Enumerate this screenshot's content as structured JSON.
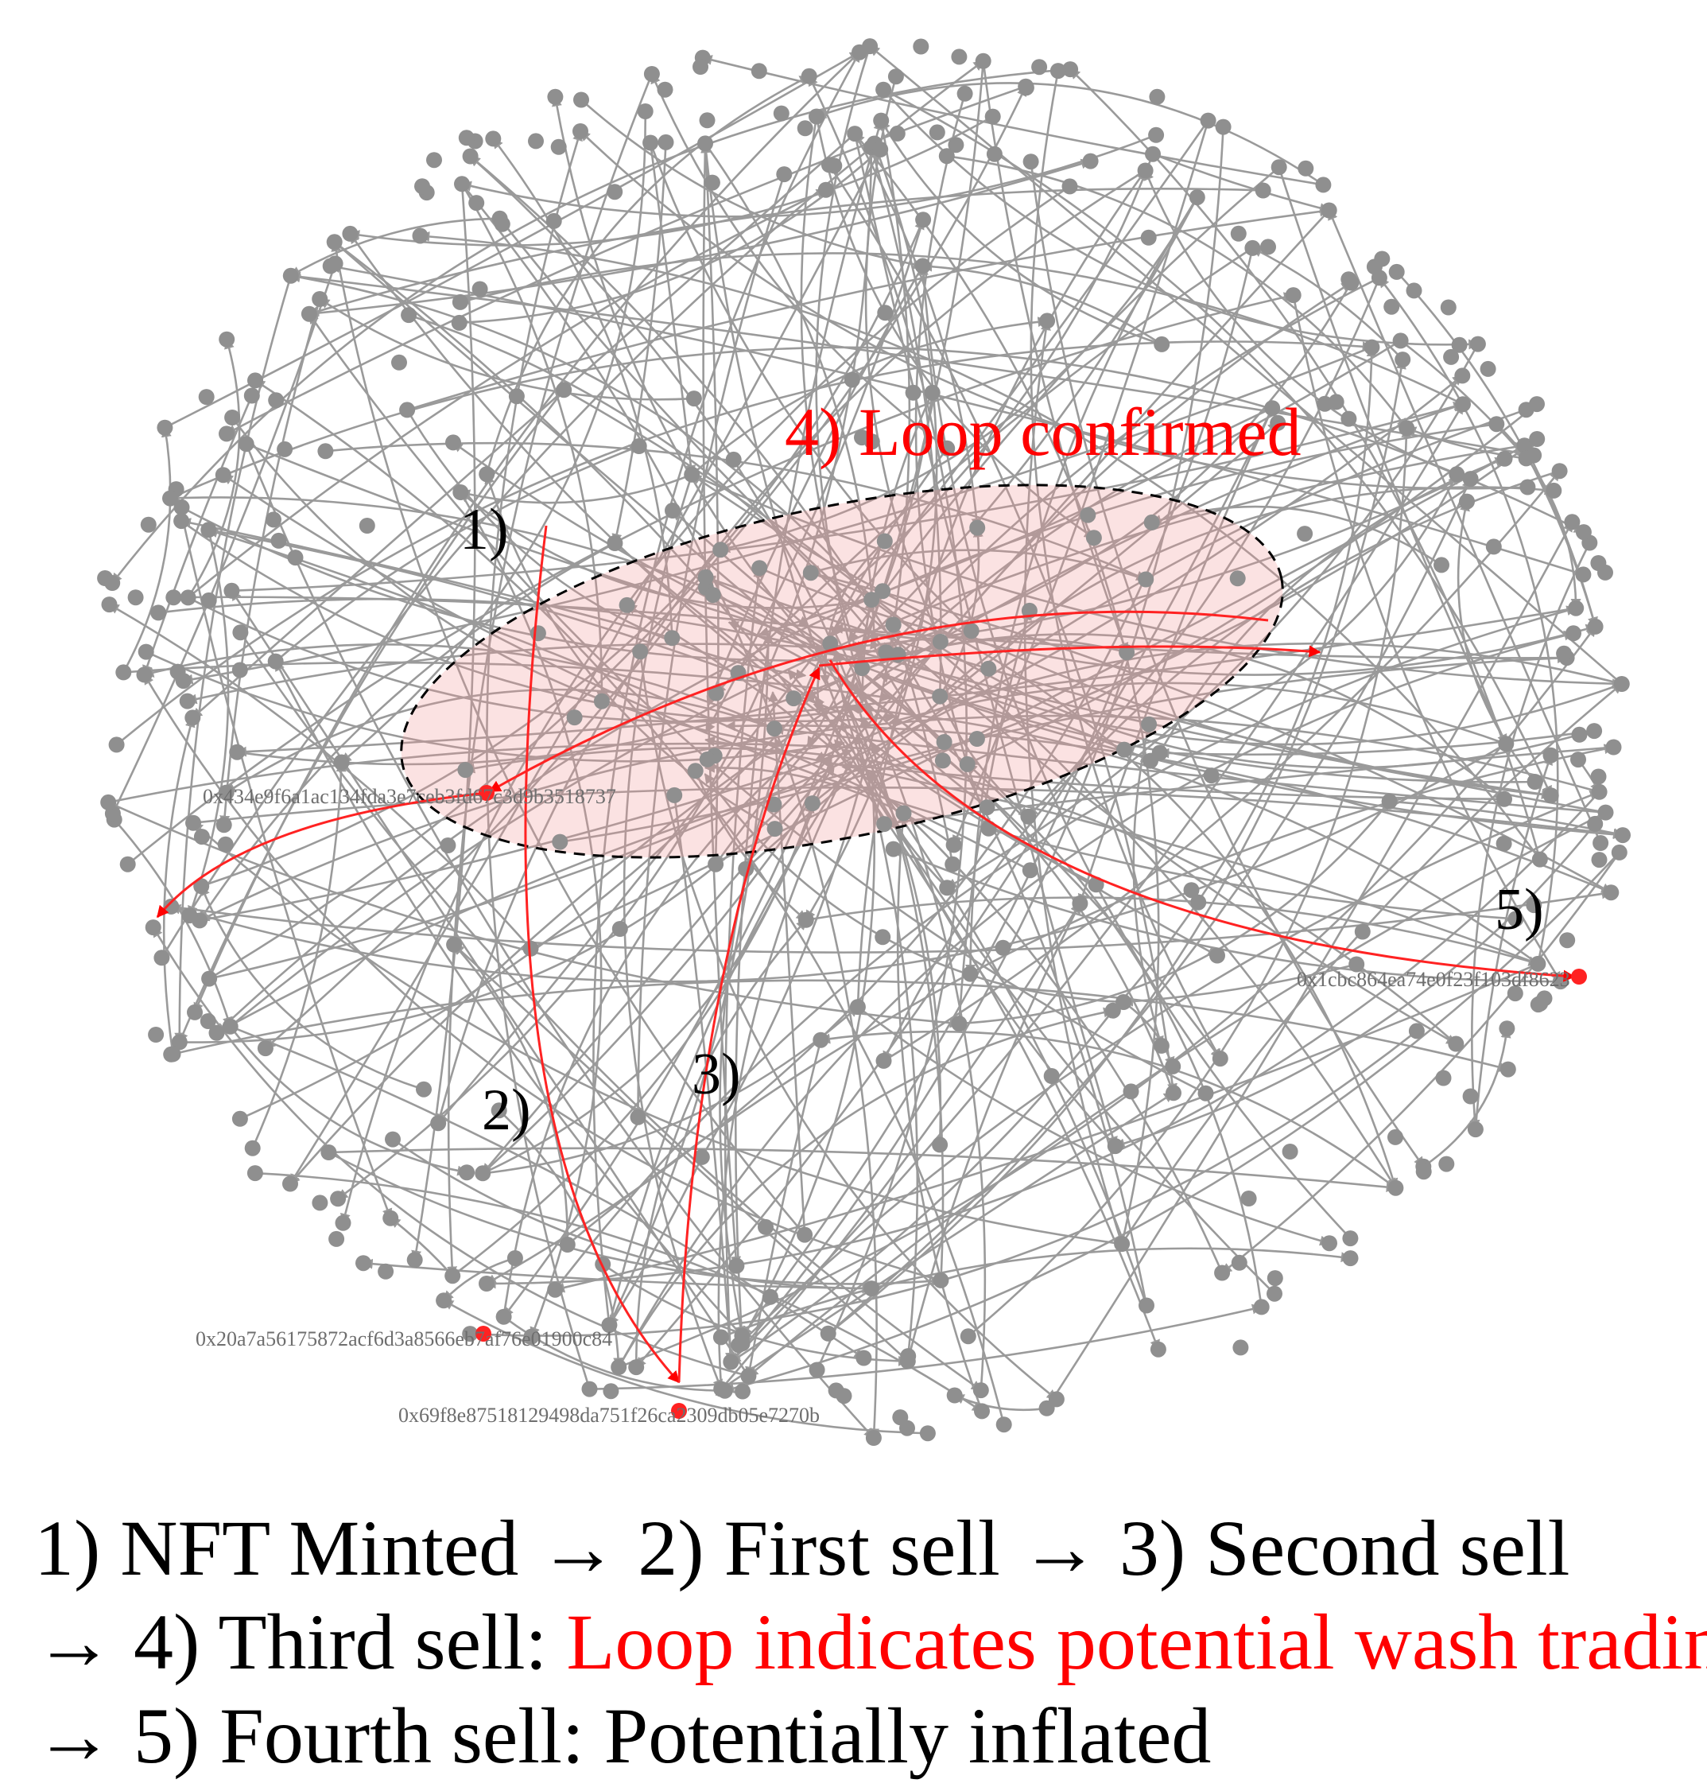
{
  "labels": {
    "loop": "4) Loop confirmed",
    "step1": "1)",
    "step2": "2)",
    "step3": "3)",
    "step5": "5)"
  },
  "addresses": [
    "0x434e9f6a1ac134fda3e7ceb3fd67c3d9b3518737",
    "0x1cbc864ea74e0f23f103df8623",
    "0x20a7a56175872acf6d3a8566eb7af76e01900c84",
    "0x69f8e87518129498da751f26ca2309db05e7270b"
  ],
  "caption": {
    "line1": "1) NFT Minted → 2) First sell → 3) Second sell",
    "line2_prefix": "→ 4) Third sell:",
    "line2_highlight": "Loop indicates potential wash trading",
    "line3": "→ 5) Fourth sell: Potentially inflated"
  }
}
